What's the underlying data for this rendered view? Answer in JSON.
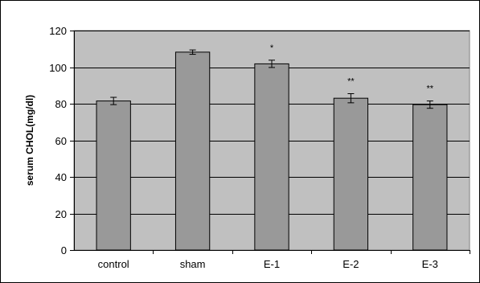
{
  "chart_data": {
    "type": "bar",
    "title": "",
    "xlabel": "",
    "ylabel": "serum CHOL(mg/dl)",
    "ylim": [
      0,
      120
    ],
    "yticks": [
      0,
      20,
      40,
      60,
      80,
      100,
      120
    ],
    "categories": [
      "control",
      "sham",
      "E-1",
      "E-2",
      "E-3"
    ],
    "values": [
      81.5,
      108.2,
      101.8,
      83.0,
      79.5
    ],
    "errors": [
      2.0,
      1.2,
      2.0,
      2.5,
      2.0
    ],
    "annotations": [
      "",
      "",
      "*",
      "**",
      "**"
    ],
    "grid": true,
    "legend": "none",
    "colors": {
      "plot_background": "#c0c0c0",
      "bar_fill": "#999999",
      "bar_stroke": "#000000",
      "grid_line": "#000000"
    }
  }
}
